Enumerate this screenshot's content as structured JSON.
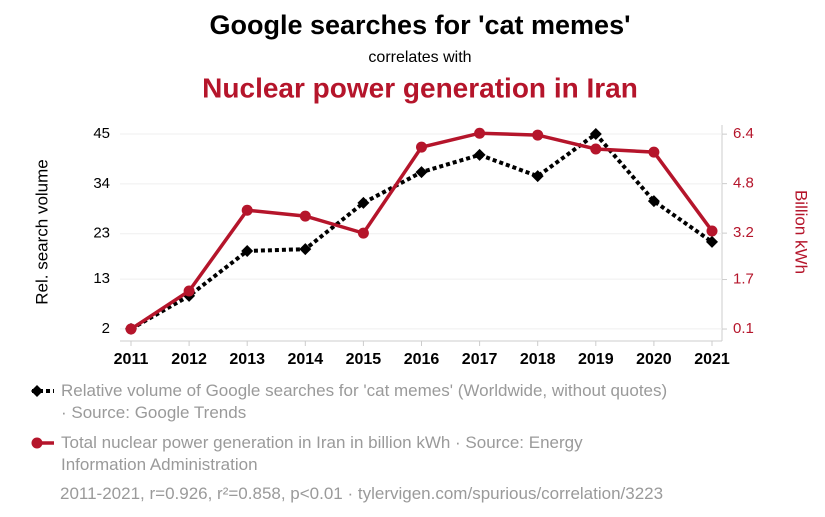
{
  "chart_data": {
    "type": "line",
    "title": "Google searches for 'cat memes'",
    "subtitle": "correlates with",
    "title2": "Nuclear power generation in Iran",
    "ylabel": "Rel. search volume",
    "y2label": "Billion kWh",
    "x": [
      2011,
      2012,
      2013,
      2014,
      2015,
      2016,
      2017,
      2018,
      2019,
      2020,
      2021
    ],
    "xlim": [
      2011,
      2021
    ],
    "xticks": [
      2011,
      2012,
      2013,
      2014,
      2015,
      2016,
      2017,
      2018,
      2019,
      2020,
      2021
    ],
    "ylim": [
      0,
      46
    ],
    "yticks": [
      2,
      13,
      23,
      34,
      45
    ],
    "y2lim": [
      -0.19,
      6.55
    ],
    "y2ticks": [
      0.1,
      1.7,
      3.2,
      4.8,
      6.4
    ],
    "grid": true,
    "series": [
      {
        "name": "Relative volume of Google searches for 'cat memes' (Worldwide, without quotes) · Source: Google Trends",
        "color": "#000000",
        "style": "dotted",
        "marker": "diamond",
        "axis": "y",
        "values": [
          2,
          9.3,
          19.2,
          19.6,
          29.8,
          36.6,
          40.4,
          35.7,
          45,
          30.2,
          21.2
        ]
      },
      {
        "name": "Total nuclear power generation in Iran in billion kWh · Source: Energy Information Administration",
        "color": "#b5152b",
        "style": "solid",
        "marker": "circle",
        "axis": "y2",
        "values": [
          0.1,
          1.33,
          3.94,
          3.75,
          3.2,
          5.98,
          6.43,
          6.37,
          5.92,
          5.82,
          3.27
        ]
      }
    ],
    "note": "2011-2021, r=0.926, r²=0.858, p<0.01 · tylervigen.com/spurious/correlation/3223"
  }
}
